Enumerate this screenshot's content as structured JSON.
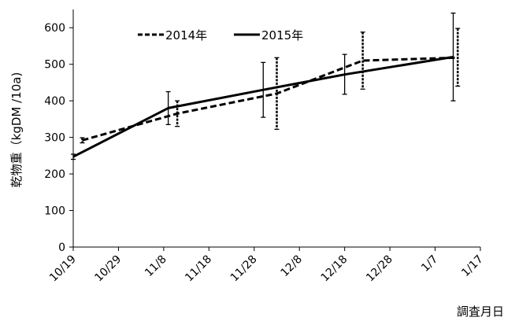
{
  "chart_data": {
    "type": "line",
    "title": "",
    "xlabel": "調査月日",
    "ylabel": "乾物重（kgDM /10a)",
    "ylim": [
      0,
      650
    ],
    "yticks": [
      0,
      100,
      200,
      300,
      400,
      500,
      600
    ],
    "x_axis_type": "date",
    "xlim": [
      "2014-10-19",
      "2015-01-17"
    ],
    "xtick_dates": [
      "2014-10-19",
      "2014-10-29",
      "2014-11-08",
      "2014-11-18",
      "2014-11-28",
      "2014-12-08",
      "2014-12-18",
      "2014-12-28",
      "2015-01-07",
      "2015-01-17"
    ],
    "xtick_labels": [
      "10/19",
      "10/29",
      "11/8",
      "11/18",
      "11/28",
      "12/8",
      "12/18",
      "12/28",
      "1/7",
      "1/17"
    ],
    "grid": false,
    "legend_position": "top-left",
    "series": [
      {
        "name": "2014年",
        "style": "dashed",
        "x": [
          "2014-10-21",
          "2014-11-11",
          "2014-12-03",
          "2014-12-22",
          "2015-01-12"
        ],
        "y": [
          292,
          365,
          420,
          510,
          518
        ],
        "err_low": [
          285,
          330,
          322,
          432,
          440
        ],
        "err_high": [
          299,
          400,
          518,
          588,
          598
        ]
      },
      {
        "name": "2015年",
        "style": "solid",
        "x": [
          "2014-10-19",
          "2014-11-09",
          "2014-11-30",
          "2014-12-18",
          "2015-01-11"
        ],
        "y": [
          247,
          380,
          430,
          472,
          520
        ],
        "err_low": [
          240,
          335,
          355,
          418,
          400
        ],
        "err_high": [
          254,
          425,
          505,
          527,
          640
        ]
      }
    ]
  }
}
